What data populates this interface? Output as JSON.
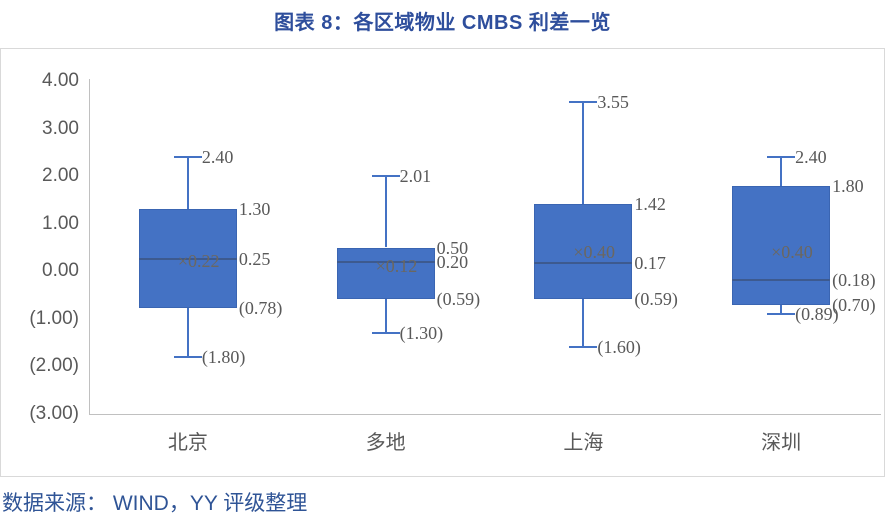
{
  "title": "图表 8：各区域物业 CMBS 利差一览",
  "source": "数据来源： WIND，YY 评级整理",
  "colors": {
    "title": "#2E4E9C",
    "source": "#2F5496",
    "box_fill": "#4472C4",
    "box_border": "#3A65B2",
    "whisker": "#4472C4",
    "median_line": "#3D5A8F",
    "label": "#595959",
    "mean_label": "#6B6760",
    "axis_line": "#C0C0C0",
    "frame_border": "#D9D9D9"
  },
  "chart_data": {
    "type": "boxplot",
    "title": "图表 8：各区域物业 CMBS 利差一览",
    "categories": [
      "北京",
      "多地",
      "上海",
      "深圳"
    ],
    "series": [
      {
        "category": "北京",
        "whisker_high": 2.4,
        "q3": 1.3,
        "median": 0.25,
        "mean": 0.22,
        "q1": -0.78,
        "whisker_low": -1.8,
        "labels": {
          "whisker_high": "2.40",
          "q3": "1.30",
          "median": "0.25",
          "mean": "0.22",
          "q1": "(0.78)",
          "whisker_low": "(1.80)"
        }
      },
      {
        "category": "多地",
        "whisker_high": 2.01,
        "q3": 0.5,
        "median": 0.2,
        "mean": 0.12,
        "q1": -0.59,
        "whisker_low": -1.3,
        "labels": {
          "whisker_high": "2.01",
          "q3": "0.50",
          "median": "0.20",
          "mean": "0.12",
          "q1": "(0.59)",
          "whisker_low": "(1.30)"
        }
      },
      {
        "category": "上海",
        "whisker_high": 3.55,
        "q3": 1.42,
        "median": 0.17,
        "mean": 0.4,
        "q1": -0.59,
        "whisker_low": -1.6,
        "labels": {
          "whisker_high": "3.55",
          "q3": "1.42",
          "median": "0.17",
          "mean": "0.40",
          "q1": "(0.59)",
          "whisker_low": "(1.60)"
        }
      },
      {
        "category": "深圳",
        "whisker_high": 2.4,
        "q3": 1.8,
        "median": -0.18,
        "mean": 0.4,
        "q1": -0.7,
        "whisker_low": -0.89,
        "labels": {
          "whisker_high": "2.40",
          "q3": "1.80",
          "median": "(0.18)",
          "mean": "0.40",
          "q1": "(0.70)",
          "whisker_low": "(0.89)"
        }
      }
    ],
    "y_axis": {
      "min": -3,
      "max": 4,
      "negative_format": "parentheses",
      "ticks": [
        {
          "value": 4,
          "label": "4.00"
        },
        {
          "value": 3,
          "label": "3.00"
        },
        {
          "value": 2,
          "label": "2.00"
        },
        {
          "value": 1,
          "label": "1.00"
        },
        {
          "value": 0,
          "label": "0.00"
        },
        {
          "value": -1,
          "label": "(1.00)"
        },
        {
          "value": -2,
          "label": "(2.00)"
        },
        {
          "value": -3,
          "label": "(3.00)"
        }
      ]
    },
    "legend": null,
    "grid": false,
    "mean_marker": "x-cross"
  }
}
